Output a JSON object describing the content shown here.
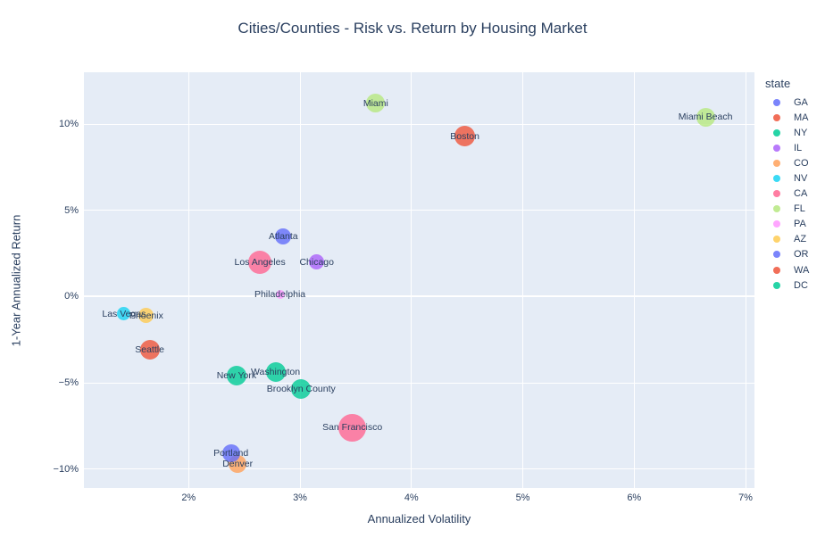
{
  "chart_data": {
    "type": "scatter",
    "title": "Cities/Counties - Risk vs. Return by Housing Market",
    "xlabel": "Annualized Volatility",
    "ylabel": "1-Year Annualized Return",
    "xlim": [
      1.06,
      7.08
    ],
    "ylim": [
      -11.1,
      13.0
    ],
    "grid": true,
    "plot_bg_color": "#E5ECF6",
    "grid_color": "#ffffff",
    "text_color": "#2a3f5f",
    "marker_opacity": 0.8,
    "x_ticks": [
      {
        "value": 2,
        "label": "2%"
      },
      {
        "value": 3,
        "label": "3%"
      },
      {
        "value": 4,
        "label": "4%"
      },
      {
        "value": 5,
        "label": "5%"
      },
      {
        "value": 6,
        "label": "6%"
      },
      {
        "value": 7,
        "label": "7%"
      }
    ],
    "y_ticks": [
      {
        "value": 10,
        "label": "10%"
      },
      {
        "value": 5,
        "label": "5%"
      },
      {
        "value": 0,
        "label": "0%"
      },
      {
        "value": -5,
        "label": "−5%"
      },
      {
        "value": -10,
        "label": "−10%"
      }
    ],
    "legend": {
      "title": "state",
      "position": "right",
      "items": [
        {
          "label": "GA",
          "color": "#636EFA"
        },
        {
          "label": "MA",
          "color": "#EF553B"
        },
        {
          "label": "NY",
          "color": "#00CC96"
        },
        {
          "label": "IL",
          "color": "#AB63FA"
        },
        {
          "label": "CO",
          "color": "#FFA15A"
        },
        {
          "label": "NV",
          "color": "#19D3F3"
        },
        {
          "label": "CA",
          "color": "#FF6692"
        },
        {
          "label": "FL",
          "color": "#B6E880"
        },
        {
          "label": "PA",
          "color": "#FF97FF"
        },
        {
          "label": "AZ",
          "color": "#FECB52"
        },
        {
          "label": "OR",
          "color": "#636EFA"
        },
        {
          "label": "WA",
          "color": "#EF553B"
        },
        {
          "label": "DC",
          "color": "#00CC96"
        }
      ]
    },
    "points": [
      {
        "label": "Atlanta",
        "state": "GA",
        "x": 2.85,
        "y": 3.5,
        "r": 9,
        "color": "#636EFA"
      },
      {
        "label": "Boston",
        "state": "MA",
        "x": 4.48,
        "y": 9.3,
        "r": 11.5,
        "color": "#EF553B"
      },
      {
        "label": "New York",
        "state": "NY",
        "x": 2.43,
        "y": -4.6,
        "r": 11,
        "color": "#00CC96"
      },
      {
        "label": "Brooklyn County",
        "state": "NY",
        "x": 3.01,
        "y": -5.35,
        "r": 11,
        "color": "#00CC96"
      },
      {
        "label": "Chicago",
        "state": "IL",
        "x": 3.15,
        "y": 2.0,
        "r": 8.5,
        "color": "#AB63FA"
      },
      {
        "label": "Denver",
        "state": "CO",
        "x": 2.44,
        "y": -9.7,
        "r": 10,
        "color": "#FFA15A"
      },
      {
        "label": "Las Vegas",
        "state": "NV",
        "x": 1.42,
        "y": -1.0,
        "r": 7.5,
        "color": "#19D3F3"
      },
      {
        "label": "Los Angeles",
        "state": "CA",
        "x": 2.64,
        "y": 2.0,
        "r": 13,
        "color": "#FF6692"
      },
      {
        "label": "San Francisco",
        "state": "CA",
        "x": 3.47,
        "y": -7.6,
        "r": 15.5,
        "color": "#FF6692"
      },
      {
        "label": "Miami",
        "state": "FL",
        "x": 3.68,
        "y": 11.2,
        "r": 10.5,
        "color": "#B6E880"
      },
      {
        "label": "Miami Beach",
        "state": "FL",
        "x": 6.64,
        "y": 10.4,
        "r": 10.5,
        "color": "#B6E880"
      },
      {
        "label": "Philadelphia",
        "state": "PA",
        "x": 2.82,
        "y": 0.1,
        "r": 5,
        "color": "#FF97FF"
      },
      {
        "label": "Phoenix",
        "state": "AZ",
        "x": 1.62,
        "y": -1.1,
        "r": 8.5,
        "color": "#FECB52"
      },
      {
        "label": "Portland",
        "state": "OR",
        "x": 2.38,
        "y": -9.1,
        "r": 10,
        "color": "#636EFA"
      },
      {
        "label": "Seattle",
        "state": "WA",
        "x": 1.65,
        "y": -3.1,
        "r": 11,
        "color": "#EF553B"
      },
      {
        "label": "Washington",
        "state": "DC",
        "x": 2.78,
        "y": -4.4,
        "r": 11,
        "color": "#00CC96"
      }
    ]
  }
}
